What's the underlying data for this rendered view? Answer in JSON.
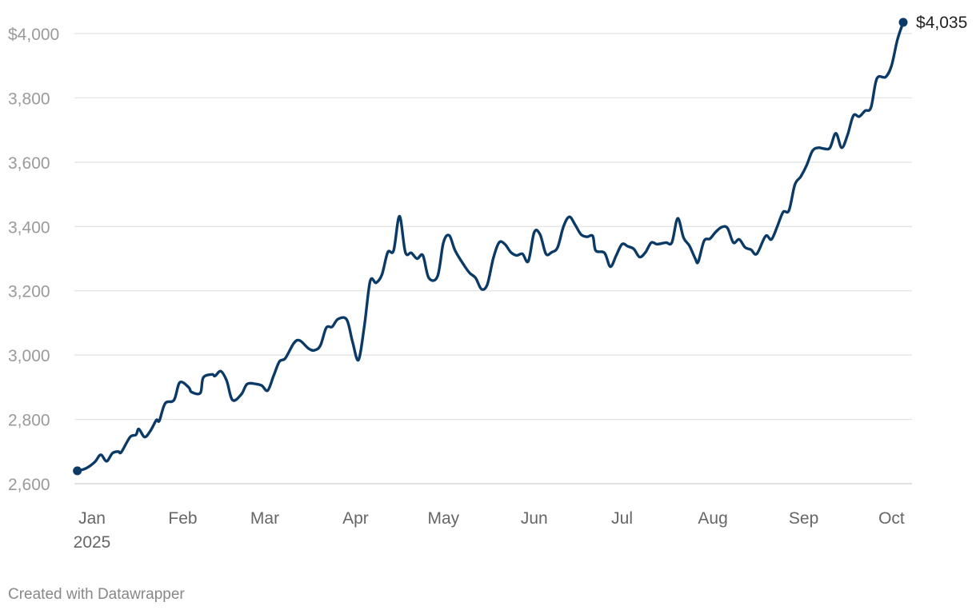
{
  "chart_data": {
    "type": "line",
    "title": "",
    "xlabel": "",
    "ylabel": "",
    "x_range": [
      "2025-01-01",
      "2025-10-14"
    ],
    "ylim": [
      2600,
      4000
    ],
    "grid": true,
    "y_ticks": [
      {
        "value": 4000,
        "label": "$4,000"
      },
      {
        "value": 3800,
        "label": "3,800"
      },
      {
        "value": 3600,
        "label": "3,600"
      },
      {
        "value": 3400,
        "label": "3,400"
      },
      {
        "value": 3200,
        "label": "3,200"
      },
      {
        "value": 3000,
        "label": "3,000"
      },
      {
        "value": 2800,
        "label": "2,800"
      },
      {
        "value": 2600,
        "label": "2,600"
      }
    ],
    "x_ticks": [
      {
        "date": "2025-01-01",
        "label": "Jan",
        "sublabel": "2025"
      },
      {
        "date": "2025-02-01",
        "label": "Feb"
      },
      {
        "date": "2025-03-01",
        "label": "Mar"
      },
      {
        "date": "2025-04-01",
        "label": "Apr"
      },
      {
        "date": "2025-05-01",
        "label": "May"
      },
      {
        "date": "2025-06-01",
        "label": "Jun"
      },
      {
        "date": "2025-07-01",
        "label": "Jul"
      },
      {
        "date": "2025-08-01",
        "label": "Aug"
      },
      {
        "date": "2025-09-01",
        "label": "Sep"
      },
      {
        "date": "2025-10-01",
        "label": "Oct"
      }
    ],
    "series": [
      {
        "color": "#0b3a66",
        "end_label": "$4,035",
        "points": [
          [
            "2025-01-02",
            2640
          ],
          [
            "2025-01-05",
            2648
          ],
          [
            "2025-01-08",
            2668
          ],
          [
            "2025-01-10",
            2690
          ],
          [
            "2025-01-12",
            2670
          ],
          [
            "2025-01-14",
            2695
          ],
          [
            "2025-01-16",
            2700
          ],
          [
            "2025-01-17",
            2698
          ],
          [
            "2025-01-20",
            2745
          ],
          [
            "2025-01-22",
            2752
          ],
          [
            "2025-01-23",
            2770
          ],
          [
            "2025-01-25",
            2745
          ],
          [
            "2025-01-27",
            2765
          ],
          [
            "2025-01-29",
            2798
          ],
          [
            "2025-01-30",
            2796
          ],
          [
            "2025-02-01",
            2850
          ],
          [
            "2025-02-04",
            2860
          ],
          [
            "2025-02-06",
            2915
          ],
          [
            "2025-02-09",
            2900
          ],
          [
            "2025-02-10",
            2885
          ],
          [
            "2025-02-13",
            2882
          ],
          [
            "2025-02-14",
            2930
          ],
          [
            "2025-02-17",
            2940
          ],
          [
            "2025-02-18",
            2935
          ],
          [
            "2025-02-20",
            2950
          ],
          [
            "2025-02-22",
            2920
          ],
          [
            "2025-02-24",
            2860
          ],
          [
            "2025-02-27",
            2878
          ],
          [
            "2025-03-01",
            2910
          ],
          [
            "2025-03-04",
            2910
          ],
          [
            "2025-03-06",
            2905
          ],
          [
            "2025-03-08",
            2890
          ],
          [
            "2025-03-10",
            2935
          ],
          [
            "2025-03-12",
            2980
          ],
          [
            "2025-03-14",
            2990
          ],
          [
            "2025-03-17",
            3038
          ],
          [
            "2025-03-19",
            3045
          ],
          [
            "2025-03-22",
            3020
          ],
          [
            "2025-03-24",
            3015
          ],
          [
            "2025-03-26",
            3030
          ],
          [
            "2025-03-28",
            3085
          ],
          [
            "2025-03-30",
            3088
          ],
          [
            "2025-04-01",
            3112
          ],
          [
            "2025-04-04",
            3110
          ],
          [
            "2025-04-06",
            3040
          ],
          [
            "2025-04-08",
            2985
          ],
          [
            "2025-04-10",
            3090
          ],
          [
            "2025-04-12",
            3230
          ],
          [
            "2025-04-14",
            3225
          ],
          [
            "2025-04-16",
            3250
          ],
          [
            "2025-04-18",
            3320
          ],
          [
            "2025-04-20",
            3325
          ],
          [
            "2025-04-22",
            3432
          ],
          [
            "2025-04-24",
            3320
          ],
          [
            "2025-04-26",
            3318
          ],
          [
            "2025-04-28",
            3300
          ],
          [
            "2025-04-30",
            3310
          ],
          [
            "2025-05-02",
            3240
          ],
          [
            "2025-05-05",
            3245
          ],
          [
            "2025-05-07",
            3350
          ],
          [
            "2025-05-09",
            3372
          ],
          [
            "2025-05-11",
            3325
          ],
          [
            "2025-05-14",
            3280
          ],
          [
            "2025-05-16",
            3255
          ],
          [
            "2025-05-18",
            3240
          ],
          [
            "2025-05-20",
            3205
          ],
          [
            "2025-05-22",
            3220
          ],
          [
            "2025-05-24",
            3300
          ],
          [
            "2025-05-26",
            3350
          ],
          [
            "2025-05-28",
            3345
          ],
          [
            "2025-05-30",
            3320
          ],
          [
            "2025-06-01",
            3310
          ],
          [
            "2025-06-03",
            3315
          ],
          [
            "2025-06-05",
            3292
          ],
          [
            "2025-06-07",
            3382
          ],
          [
            "2025-06-09",
            3375
          ],
          [
            "2025-06-11",
            3315
          ],
          [
            "2025-06-13",
            3320
          ],
          [
            "2025-06-15",
            3335
          ],
          [
            "2025-06-17",
            3400
          ],
          [
            "2025-06-19",
            3430
          ],
          [
            "2025-06-21",
            3405
          ],
          [
            "2025-06-23",
            3375
          ],
          [
            "2025-06-25",
            3368
          ],
          [
            "2025-06-27",
            3370
          ],
          [
            "2025-06-28",
            3325
          ],
          [
            "2025-07-01",
            3318
          ],
          [
            "2025-07-03",
            3275
          ],
          [
            "2025-07-05",
            3310
          ],
          [
            "2025-07-07",
            3345
          ],
          [
            "2025-07-09",
            3338
          ],
          [
            "2025-07-11",
            3330
          ],
          [
            "2025-07-13",
            3305
          ],
          [
            "2025-07-15",
            3320
          ],
          [
            "2025-07-17",
            3350
          ],
          [
            "2025-07-19",
            3345
          ],
          [
            "2025-07-22",
            3350
          ],
          [
            "2025-07-24",
            3350
          ],
          [
            "2025-07-26",
            3425
          ],
          [
            "2025-07-28",
            3365
          ],
          [
            "2025-07-30",
            3340
          ],
          [
            "2025-08-01",
            3300
          ],
          [
            "2025-08-02",
            3290
          ],
          [
            "2025-08-04",
            3355
          ],
          [
            "2025-08-06",
            3362
          ],
          [
            "2025-08-08",
            3383
          ],
          [
            "2025-08-10",
            3398
          ],
          [
            "2025-08-12",
            3395
          ],
          [
            "2025-08-14",
            3350
          ],
          [
            "2025-08-16",
            3360
          ],
          [
            "2025-08-18",
            3335
          ],
          [
            "2025-08-20",
            3328
          ],
          [
            "2025-08-22",
            3315
          ],
          [
            "2025-08-25",
            3370
          ],
          [
            "2025-08-27",
            3360
          ],
          [
            "2025-08-29",
            3400
          ],
          [
            "2025-08-31",
            3445
          ],
          [
            "2025-09-02",
            3450
          ],
          [
            "2025-09-04",
            3530
          ],
          [
            "2025-09-06",
            3555
          ],
          [
            "2025-09-08",
            3590
          ],
          [
            "2025-09-10",
            3635
          ],
          [
            "2025-09-12",
            3645
          ],
          [
            "2025-09-14",
            3642
          ],
          [
            "2025-09-16",
            3645
          ],
          [
            "2025-09-18",
            3690
          ],
          [
            "2025-09-20",
            3645
          ],
          [
            "2025-09-22",
            3685
          ],
          [
            "2025-09-24",
            3745
          ],
          [
            "2025-09-26",
            3742
          ],
          [
            "2025-09-28",
            3760
          ],
          [
            "2025-09-30",
            3770
          ],
          [
            "2025-10-02",
            3860
          ],
          [
            "2025-10-05",
            3865
          ],
          [
            "2025-10-07",
            3900
          ],
          [
            "2025-10-09",
            3980
          ],
          [
            "2025-10-11",
            4035
          ]
        ]
      }
    ]
  },
  "footer": {
    "credit": "Created with Datawrapper"
  }
}
